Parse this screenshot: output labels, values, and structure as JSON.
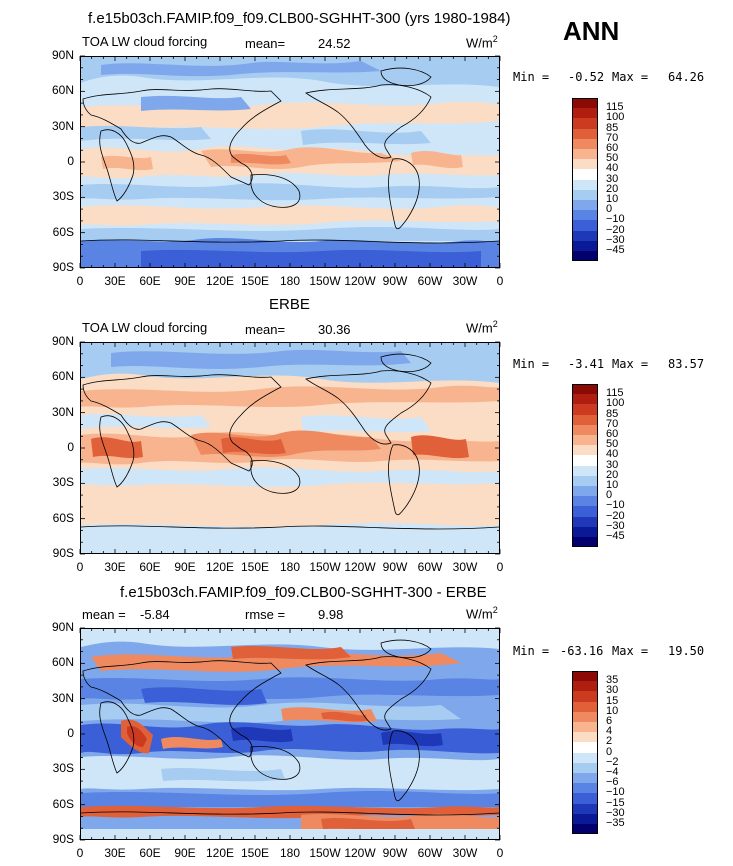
{
  "header": {
    "run_title": "f.e15b03ch.FAMIP.f09_f09.CLB00-SGHHT-300 (yrs 1980-1984)",
    "season": "ANN"
  },
  "colors": {
    "land_outline": "#000000"
  },
  "chart_data": [
    {
      "type": "heatmap",
      "title": "f.e15b03ch.FAMIP.f09_f09.CLB00-SGHHT-300 (yrs 1980-1984)",
      "left_label": "TOA LW cloud forcing",
      "stat_label": "mean=",
      "stat_value": "24.52",
      "units": "W/m",
      "units_sup": "2",
      "min_label": "Min =",
      "min_value": "-0.52",
      "max_label": "Max =",
      "max_value": "64.26",
      "x_ticks": [
        "0",
        "30E",
        "60E",
        "90E",
        "120E",
        "150E",
        "180",
        "150W",
        "120W",
        "90W",
        "60W",
        "30W",
        "0"
      ],
      "y_ticks": [
        "90N",
        "60N",
        "30N",
        "0",
        "30S",
        "60S",
        "90S"
      ],
      "colorbar": {
        "levels": [
          "115",
          "100",
          "85",
          "70",
          "60",
          "50",
          "40",
          "30",
          "20",
          "10",
          "0",
          "−10",
          "−20",
          "−30",
          "−45"
        ],
        "colors": [
          "#8c0a06",
          "#b01e10",
          "#cc3a20",
          "#e0603a",
          "#ef8a60",
          "#f7b48e",
          "#fbdcc4",
          "#ffffff",
          "#cfe6f8",
          "#a6ccf2",
          "#7fa8ec",
          "#5a84e4",
          "#3a5fd6",
          "#1f38b8",
          "#0a1a96",
          "#02006e"
        ]
      },
      "ylim": [
        -90,
        90
      ],
      "xlim": [
        0,
        360
      ]
    },
    {
      "type": "heatmap",
      "title": "ERBE",
      "left_label": "TOA LW cloud forcing",
      "stat_label": "mean=",
      "stat_value": "30.36",
      "units": "W/m",
      "units_sup": "2",
      "min_label": "Min =",
      "min_value": "-3.41",
      "max_label": "Max =",
      "max_value": "83.57",
      "x_ticks": [
        "0",
        "30E",
        "60E",
        "90E",
        "120E",
        "150E",
        "180",
        "150W",
        "120W",
        "90W",
        "60W",
        "30W",
        "0"
      ],
      "y_ticks": [
        "90N",
        "60N",
        "30N",
        "0",
        "30S",
        "60S",
        "90S"
      ],
      "colorbar": {
        "levels": [
          "115",
          "100",
          "85",
          "70",
          "60",
          "50",
          "40",
          "30",
          "20",
          "10",
          "0",
          "−10",
          "−20",
          "−30",
          "−45"
        ],
        "colors": [
          "#8c0a06",
          "#b01e10",
          "#cc3a20",
          "#e0603a",
          "#ef8a60",
          "#f7b48e",
          "#fbdcc4",
          "#ffffff",
          "#cfe6f8",
          "#a6ccf2",
          "#7fa8ec",
          "#5a84e4",
          "#3a5fd6",
          "#1f38b8",
          "#0a1a96",
          "#02006e"
        ]
      },
      "ylim": [
        -90,
        90
      ],
      "xlim": [
        0,
        360
      ]
    },
    {
      "type": "heatmap",
      "title": "f.e15b03ch.FAMIP.f09_f09.CLB00-SGHHT-300 - ERBE",
      "left_label": "mean =",
      "left_value": "-5.84",
      "stat_label": "rmse =",
      "stat_value": "9.98",
      "units": "W/m",
      "units_sup": "2",
      "min_label": "Min =",
      "min_value": "-63.16",
      "max_label": "Max =",
      "max_value": "19.50",
      "x_ticks": [
        "0",
        "30E",
        "60E",
        "90E",
        "120E",
        "150E",
        "180",
        "150W",
        "120W",
        "90W",
        "60W",
        "30W",
        "0"
      ],
      "y_ticks": [
        "90N",
        "60N",
        "30N",
        "0",
        "30S",
        "60S",
        "90S"
      ],
      "colorbar": {
        "levels": [
          "35",
          "30",
          "15",
          "10",
          "6",
          "4",
          "2",
          "0",
          "−2",
          "−4",
          "−6",
          "−10",
          "−15",
          "−30",
          "−35"
        ],
        "colors": [
          "#8c0a06",
          "#b01e10",
          "#cc3a20",
          "#e0603a",
          "#ef8a60",
          "#f7b48e",
          "#fbdcc4",
          "#ffffff",
          "#cfe6f8",
          "#a6ccf2",
          "#7fa8ec",
          "#5a84e4",
          "#3a5fd6",
          "#1f38b8",
          "#0a1a96",
          "#02006e"
        ]
      },
      "ylim": [
        -90,
        90
      ],
      "xlim": [
        0,
        360
      ]
    }
  ]
}
